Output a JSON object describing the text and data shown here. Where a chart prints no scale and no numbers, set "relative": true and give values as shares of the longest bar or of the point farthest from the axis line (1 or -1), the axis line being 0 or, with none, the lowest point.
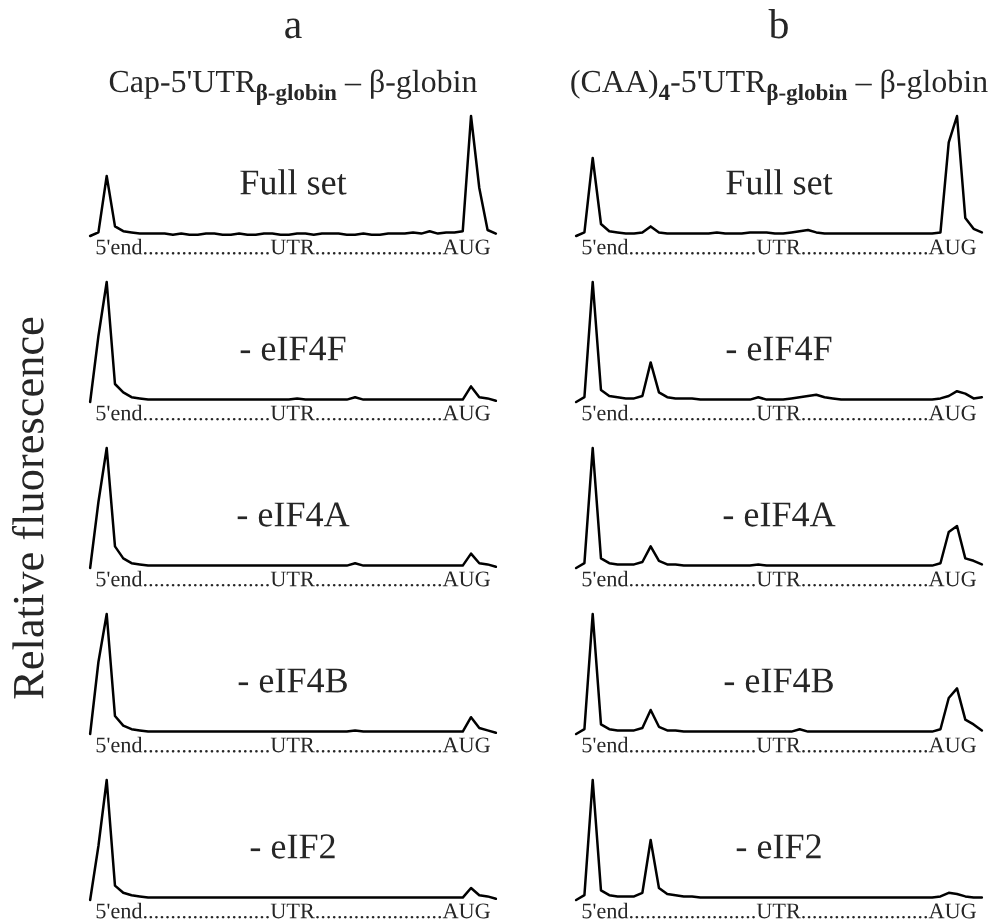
{
  "chart_data": [
    {
      "type": "line",
      "relative": true,
      "title": "a",
      "subtitle": "Cap-5'UTR$_{β-globin}$ – β-globin",
      "xlabel": "5'end.......................UTR.......................AUG",
      "annotations": [
        "Full set"
      ],
      "color": "#000000",
      "categories": [
        null,
        null,
        null,
        null,
        null,
        null,
        null,
        null,
        null,
        null,
        null,
        null,
        null,
        null,
        null,
        null,
        null,
        null,
        null,
        null,
        null,
        null,
        null,
        null,
        null,
        null,
        null,
        null,
        null,
        null,
        null,
        null,
        null,
        null,
        null,
        null,
        null,
        null,
        null,
        null,
        null,
        null,
        null,
        null,
        null,
        null,
        null,
        null,
        null,
        null
      ],
      "values": [
        0,
        0.03,
        0.5,
        0.08,
        0.04,
        0.03,
        0.02,
        0.02,
        0.02,
        0.02,
        0.01,
        0.02,
        0.01,
        0.01,
        0.02,
        0.02,
        0.01,
        0.01,
        0.02,
        0.01,
        0.01,
        0.02,
        0.02,
        0.01,
        0.01,
        0.02,
        0.02,
        0.01,
        0.02,
        0.02,
        0.02,
        0.01,
        0.01,
        0.02,
        0.01,
        0.01,
        0.02,
        0.02,
        0.02,
        0.03,
        0.02,
        0.04,
        0.02,
        0.03,
        0.03,
        0.04,
        1,
        0.4,
        0.05,
        0.02
      ]
    },
    {
      "type": "line",
      "relative": true,
      "title": "b",
      "subtitle": "(CAA)$_{4}$-5'UTR$_{β-globin}$ – β-globin",
      "xlabel": "5'end.......................UTR.......................AUG",
      "annotations": [
        "Full set"
      ],
      "color": "#000000",
      "categories": [
        null,
        null,
        null,
        null,
        null,
        null,
        null,
        null,
        null,
        null,
        null,
        null,
        null,
        null,
        null,
        null,
        null,
        null,
        null,
        null,
        null,
        null,
        null,
        null,
        null,
        null,
        null,
        null,
        null,
        null,
        null,
        null,
        null,
        null,
        null,
        null,
        null,
        null,
        null,
        null,
        null,
        null,
        null,
        null,
        null,
        null,
        null,
        null,
        null,
        null
      ],
      "values": [
        0,
        0.03,
        0.65,
        0.1,
        0.04,
        0.03,
        0.02,
        0.02,
        0.03,
        0.08,
        0.03,
        0.02,
        0.02,
        0.02,
        0.02,
        0.02,
        0.02,
        0.03,
        0.02,
        0.02,
        0.02,
        0.03,
        0.03,
        0.03,
        0.02,
        0.02,
        0.03,
        0.04,
        0.05,
        0.03,
        0.02,
        0.02,
        0.02,
        0.02,
        0.02,
        0.02,
        0.02,
        0.02,
        0.02,
        0.02,
        0.02,
        0.02,
        0.02,
        0.02,
        0.03,
        0.78,
        1,
        0.15,
        0.06,
        0.03
      ]
    },
    {
      "type": "line",
      "relative": true,
      "xlabel": "5'end.......................UTR.......................AUG",
      "annotations": [
        "- eIF4F"
      ],
      "color": "#000000",
      "categories": [
        null,
        null,
        null,
        null,
        null,
        null,
        null,
        null,
        null,
        null,
        null,
        null,
        null,
        null,
        null,
        null,
        null,
        null,
        null,
        null,
        null,
        null,
        null,
        null,
        null,
        null,
        null,
        null,
        null,
        null,
        null,
        null,
        null,
        null,
        null,
        null,
        null,
        null,
        null,
        null,
        null,
        null,
        null,
        null,
        null,
        null,
        null,
        null,
        null,
        null
      ],
      "values": [
        0,
        0.55,
        1,
        0.15,
        0.08,
        0.04,
        0.03,
        0.02,
        0.02,
        0.02,
        0.02,
        0.02,
        0.02,
        0.02,
        0.02,
        0.02,
        0.02,
        0.02,
        0.02,
        0.02,
        0.02,
        0.02,
        0.02,
        0.02,
        0.02,
        0.03,
        0.02,
        0.02,
        0.02,
        0.02,
        0.02,
        0.02,
        0.04,
        0.02,
        0.02,
        0.02,
        0.02,
        0.02,
        0.02,
        0.02,
        0.02,
        0.02,
        0.02,
        0.02,
        0.02,
        0.02,
        0.13,
        0.04,
        0.03,
        0.01
      ]
    },
    {
      "type": "line",
      "relative": true,
      "xlabel": "5'end.......................UTR.......................AUG",
      "annotations": [
        "- eIF4F"
      ],
      "color": "#000000",
      "categories": [
        null,
        null,
        null,
        null,
        null,
        null,
        null,
        null,
        null,
        null,
        null,
        null,
        null,
        null,
        null,
        null,
        null,
        null,
        null,
        null,
        null,
        null,
        null,
        null,
        null,
        null,
        null,
        null,
        null,
        null,
        null,
        null,
        null,
        null,
        null,
        null,
        null,
        null,
        null,
        null,
        null,
        null,
        null,
        null,
        null,
        null,
        null,
        null,
        null,
        null
      ],
      "values": [
        0,
        0.04,
        1,
        0.1,
        0.05,
        0.04,
        0.03,
        0.03,
        0.05,
        0.33,
        0.08,
        0.04,
        0.03,
        0.03,
        0.03,
        0.02,
        0.02,
        0.02,
        0.02,
        0.02,
        0.02,
        0.02,
        0.04,
        0.02,
        0.02,
        0.02,
        0.03,
        0.04,
        0.05,
        0.06,
        0.04,
        0.03,
        0.02,
        0.02,
        0.02,
        0.02,
        0.02,
        0.02,
        0.02,
        0.02,
        0.02,
        0.02,
        0.02,
        0.02,
        0.03,
        0.05,
        0.09,
        0.07,
        0.03,
        0.04
      ]
    },
    {
      "type": "line",
      "relative": true,
      "xlabel": "5'end.......................UTR.......................AUG",
      "ylabel": "Relative fluorescence",
      "annotations": [
        "- eIF4A"
      ],
      "color": "#000000",
      "categories": [
        null,
        null,
        null,
        null,
        null,
        null,
        null,
        null,
        null,
        null,
        null,
        null,
        null,
        null,
        null,
        null,
        null,
        null,
        null,
        null,
        null,
        null,
        null,
        null,
        null,
        null,
        null,
        null,
        null,
        null,
        null,
        null,
        null,
        null,
        null,
        null,
        null,
        null,
        null,
        null,
        null,
        null,
        null,
        null,
        null,
        null,
        null,
        null,
        null,
        null
      ],
      "values": [
        0,
        0.55,
        1,
        0.18,
        0.08,
        0.04,
        0.03,
        0.02,
        0.02,
        0.02,
        0.02,
        0.02,
        0.02,
        0.02,
        0.02,
        0.02,
        0.02,
        0.02,
        0.02,
        0.02,
        0.02,
        0.02,
        0.02,
        0.02,
        0.02,
        0.02,
        0.02,
        0.02,
        0.02,
        0.02,
        0.02,
        0.02,
        0.04,
        0.02,
        0.02,
        0.02,
        0.02,
        0.02,
        0.02,
        0.02,
        0.02,
        0.02,
        0.02,
        0.02,
        0.02,
        0.02,
        0.12,
        0.04,
        0.03,
        0.01
      ]
    },
    {
      "type": "line",
      "relative": true,
      "xlabel": "5'end.......................UTR.......................AUG",
      "annotations": [
        "- eIF4A"
      ],
      "color": "#000000",
      "categories": [
        null,
        null,
        null,
        null,
        null,
        null,
        null,
        null,
        null,
        null,
        null,
        null,
        null,
        null,
        null,
        null,
        null,
        null,
        null,
        null,
        null,
        null,
        null,
        null,
        null,
        null,
        null,
        null,
        null,
        null,
        null,
        null,
        null,
        null,
        null,
        null,
        null,
        null,
        null,
        null,
        null,
        null,
        null,
        null,
        null,
        null,
        null,
        null,
        null,
        null
      ],
      "values": [
        0,
        0.04,
        1,
        0.08,
        0.04,
        0.03,
        0.03,
        0.03,
        0.05,
        0.18,
        0.06,
        0.03,
        0.03,
        0.02,
        0.02,
        0.02,
        0.02,
        0.02,
        0.02,
        0.02,
        0.02,
        0.02,
        0.03,
        0.02,
        0.02,
        0.02,
        0.02,
        0.02,
        0.02,
        0.02,
        0.02,
        0.02,
        0.02,
        0.02,
        0.02,
        0.02,
        0.02,
        0.02,
        0.02,
        0.02,
        0.02,
        0.02,
        0.02,
        0.02,
        0.04,
        0.3,
        0.35,
        0.08,
        0.06,
        0.03
      ]
    },
    {
      "type": "line",
      "relative": true,
      "xlabel": "5'end.......................UTR.......................AUG",
      "annotations": [
        "- eIF4B"
      ],
      "color": "#000000",
      "categories": [
        null,
        null,
        null,
        null,
        null,
        null,
        null,
        null,
        null,
        null,
        null,
        null,
        null,
        null,
        null,
        null,
        null,
        null,
        null,
        null,
        null,
        null,
        null,
        null,
        null,
        null,
        null,
        null,
        null,
        null,
        null,
        null,
        null,
        null,
        null,
        null,
        null,
        null,
        null,
        null,
        null,
        null,
        null,
        null,
        null,
        null,
        null,
        null,
        null,
        null
      ],
      "values": [
        0,
        0.6,
        1,
        0.15,
        0.07,
        0.04,
        0.03,
        0.02,
        0.02,
        0.02,
        0.02,
        0.02,
        0.02,
        0.02,
        0.02,
        0.02,
        0.02,
        0.02,
        0.02,
        0.02,
        0.02,
        0.02,
        0.02,
        0.02,
        0.02,
        0.02,
        0.02,
        0.02,
        0.02,
        0.02,
        0.02,
        0.02,
        0.03,
        0.02,
        0.02,
        0.02,
        0.02,
        0.02,
        0.02,
        0.02,
        0.02,
        0.02,
        0.02,
        0.02,
        0.02,
        0.02,
        0.14,
        0.05,
        0.03,
        0.01
      ]
    },
    {
      "type": "line",
      "relative": true,
      "xlabel": "5'end.......................UTR.......................AUG",
      "annotations": [
        "- eIF4B"
      ],
      "color": "#000000",
      "categories": [
        null,
        null,
        null,
        null,
        null,
        null,
        null,
        null,
        null,
        null,
        null,
        null,
        null,
        null,
        null,
        null,
        null,
        null,
        null,
        null,
        null,
        null,
        null,
        null,
        null,
        null,
        null,
        null,
        null,
        null,
        null,
        null,
        null,
        null,
        null,
        null,
        null,
        null,
        null,
        null,
        null,
        null,
        null,
        null,
        null,
        null,
        null,
        null,
        null,
        null
      ],
      "values": [
        0,
        0.04,
        1,
        0.08,
        0.04,
        0.03,
        0.03,
        0.03,
        0.05,
        0.2,
        0.06,
        0.03,
        0.03,
        0.02,
        0.02,
        0.02,
        0.02,
        0.02,
        0.02,
        0.02,
        0.02,
        0.02,
        0.02,
        0.02,
        0.02,
        0.02,
        0.02,
        0.04,
        0.02,
        0.02,
        0.02,
        0.02,
        0.02,
        0.02,
        0.02,
        0.02,
        0.02,
        0.02,
        0.02,
        0.02,
        0.02,
        0.02,
        0.02,
        0.02,
        0.04,
        0.3,
        0.38,
        0.12,
        0.08,
        0.03
      ]
    },
    {
      "type": "line",
      "relative": true,
      "xlabel": "5'end.......................UTR.......................AUG",
      "annotations": [
        "- eIF2"
      ],
      "color": "#000000",
      "categories": [
        null,
        null,
        null,
        null,
        null,
        null,
        null,
        null,
        null,
        null,
        null,
        null,
        null,
        null,
        null,
        null,
        null,
        null,
        null,
        null,
        null,
        null,
        null,
        null,
        null,
        null,
        null,
        null,
        null,
        null,
        null,
        null,
        null,
        null,
        null,
        null,
        null,
        null,
        null,
        null,
        null,
        null,
        null,
        null,
        null,
        null,
        null,
        null,
        null,
        null
      ],
      "values": [
        0,
        0.45,
        1,
        0.12,
        0.06,
        0.04,
        0.03,
        0.02,
        0.02,
        0.02,
        0.02,
        0.02,
        0.02,
        0.02,
        0.02,
        0.02,
        0.02,
        0.02,
        0.02,
        0.02,
        0.02,
        0.02,
        0.02,
        0.02,
        0.02,
        0.02,
        0.02,
        0.02,
        0.02,
        0.02,
        0.02,
        0.02,
        0.02,
        0.02,
        0.02,
        0.02,
        0.02,
        0.02,
        0.02,
        0.02,
        0.02,
        0.02,
        0.02,
        0.02,
        0.02,
        0.02,
        0.1,
        0.04,
        0.03,
        0.01
      ]
    },
    {
      "type": "line",
      "relative": true,
      "xlabel": "5'end.......................UTR.......................AUG",
      "annotations": [
        "- eIF2"
      ],
      "color": "#000000",
      "categories": [
        null,
        null,
        null,
        null,
        null,
        null,
        null,
        null,
        null,
        null,
        null,
        null,
        null,
        null,
        null,
        null,
        null,
        null,
        null,
        null,
        null,
        null,
        null,
        null,
        null,
        null,
        null,
        null,
        null,
        null,
        null,
        null,
        null,
        null,
        null,
        null,
        null,
        null,
        null,
        null,
        null,
        null,
        null,
        null,
        null,
        null,
        null,
        null,
        null,
        null
      ],
      "values": [
        0,
        0.04,
        1,
        0.08,
        0.04,
        0.03,
        0.03,
        0.03,
        0.06,
        0.5,
        0.1,
        0.05,
        0.04,
        0.03,
        0.03,
        0.02,
        0.02,
        0.02,
        0.02,
        0.02,
        0.02,
        0.02,
        0.02,
        0.02,
        0.02,
        0.02,
        0.02,
        0.02,
        0.02,
        0.02,
        0.02,
        0.02,
        0.02,
        0.02,
        0.02,
        0.02,
        0.02,
        0.02,
        0.02,
        0.02,
        0.02,
        0.02,
        0.02,
        0.02,
        0.03,
        0.06,
        0.05,
        0.03,
        0.02,
        0.02
      ]
    }
  ]
}
